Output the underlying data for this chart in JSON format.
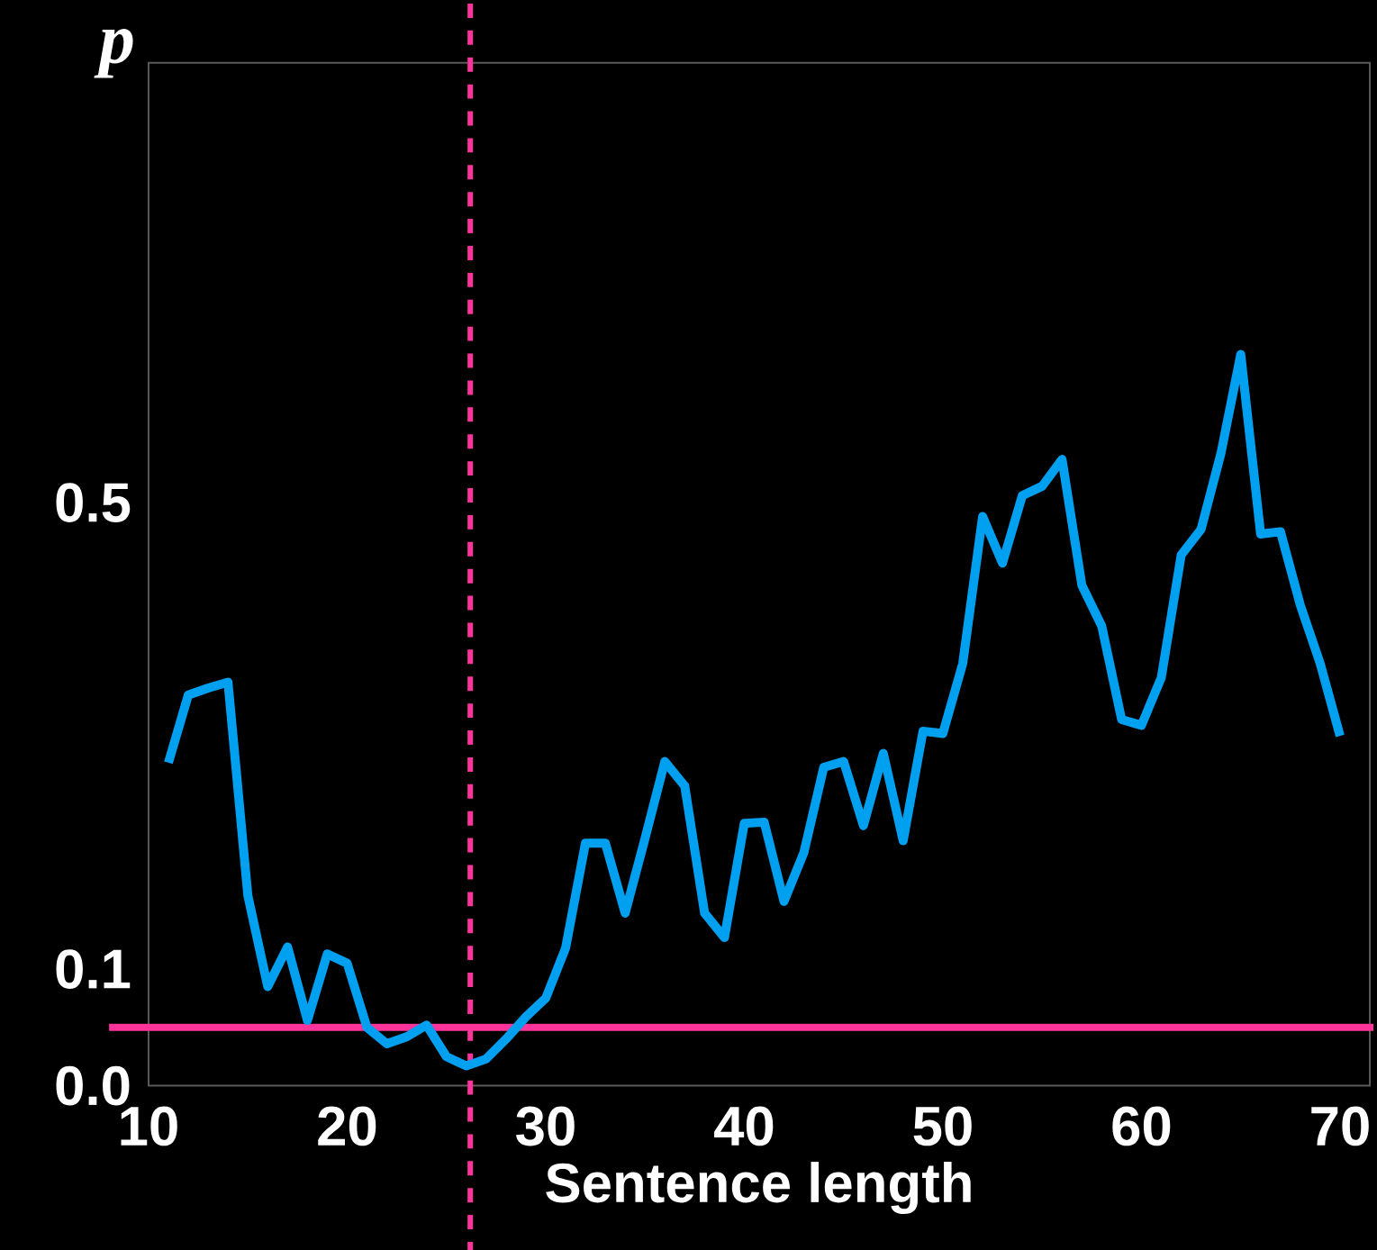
{
  "chart_data": {
    "type": "line",
    "xlabel": "Sentence length",
    "ylabel": "p",
    "xlim": [
      10,
      71.5
    ],
    "ylim": [
      0,
      0.877
    ],
    "xticks": [
      10,
      20,
      30,
      40,
      50,
      60,
      70
    ],
    "yticks": [
      {
        "value": 0,
        "label": "0.0"
      },
      {
        "value": 0.1,
        "label": "0.1"
      },
      {
        "value": 0.5,
        "label": "0.5"
      }
    ],
    "x": [
      11,
      12,
      13,
      14,
      15,
      16,
      17,
      18,
      19,
      20,
      21,
      22,
      23,
      24,
      25,
      26,
      27,
      28,
      29,
      30,
      31,
      32,
      33,
      34,
      35,
      36,
      37,
      38,
      39,
      40,
      41,
      42,
      43,
      44,
      45,
      46,
      47,
      48,
      49,
      50,
      51,
      52,
      53,
      54,
      55,
      56,
      57,
      58,
      59,
      60,
      61,
      62,
      63,
      64,
      65,
      66,
      67,
      68,
      69,
      70
    ],
    "series": [
      {
        "color": "#00a0f0",
        "values": [
          0.277,
          0.335,
          0.341,
          0.346,
          0.163,
          0.085,
          0.119,
          0.056,
          0.113,
          0.105,
          0.05,
          0.036,
          0.042,
          0.052,
          0.025,
          0.017,
          0.023,
          0.04,
          0.059,
          0.075,
          0.118,
          0.208,
          0.208,
          0.148,
          0.212,
          0.278,
          0.257,
          0.148,
          0.127,
          0.225,
          0.226,
          0.158,
          0.2,
          0.273,
          0.278,
          0.223,
          0.285,
          0.21,
          0.304,
          0.302,
          0.362,
          0.488,
          0.448,
          0.506,
          0.514,
          0.537,
          0.429,
          0.394,
          0.314,
          0.309,
          0.35,
          0.455,
          0.477,
          0.542,
          0.627,
          0.473,
          0.475,
          0.412,
          0.362,
          0.3
        ]
      }
    ],
    "ref_lines": [
      {
        "axis": "x",
        "value": 26.2,
        "color": "#ff3399",
        "line_style": "dashed"
      },
      {
        "axis": "y",
        "value": 0.05,
        "color": "#ff3399",
        "line_style": "solid"
      }
    ]
  }
}
